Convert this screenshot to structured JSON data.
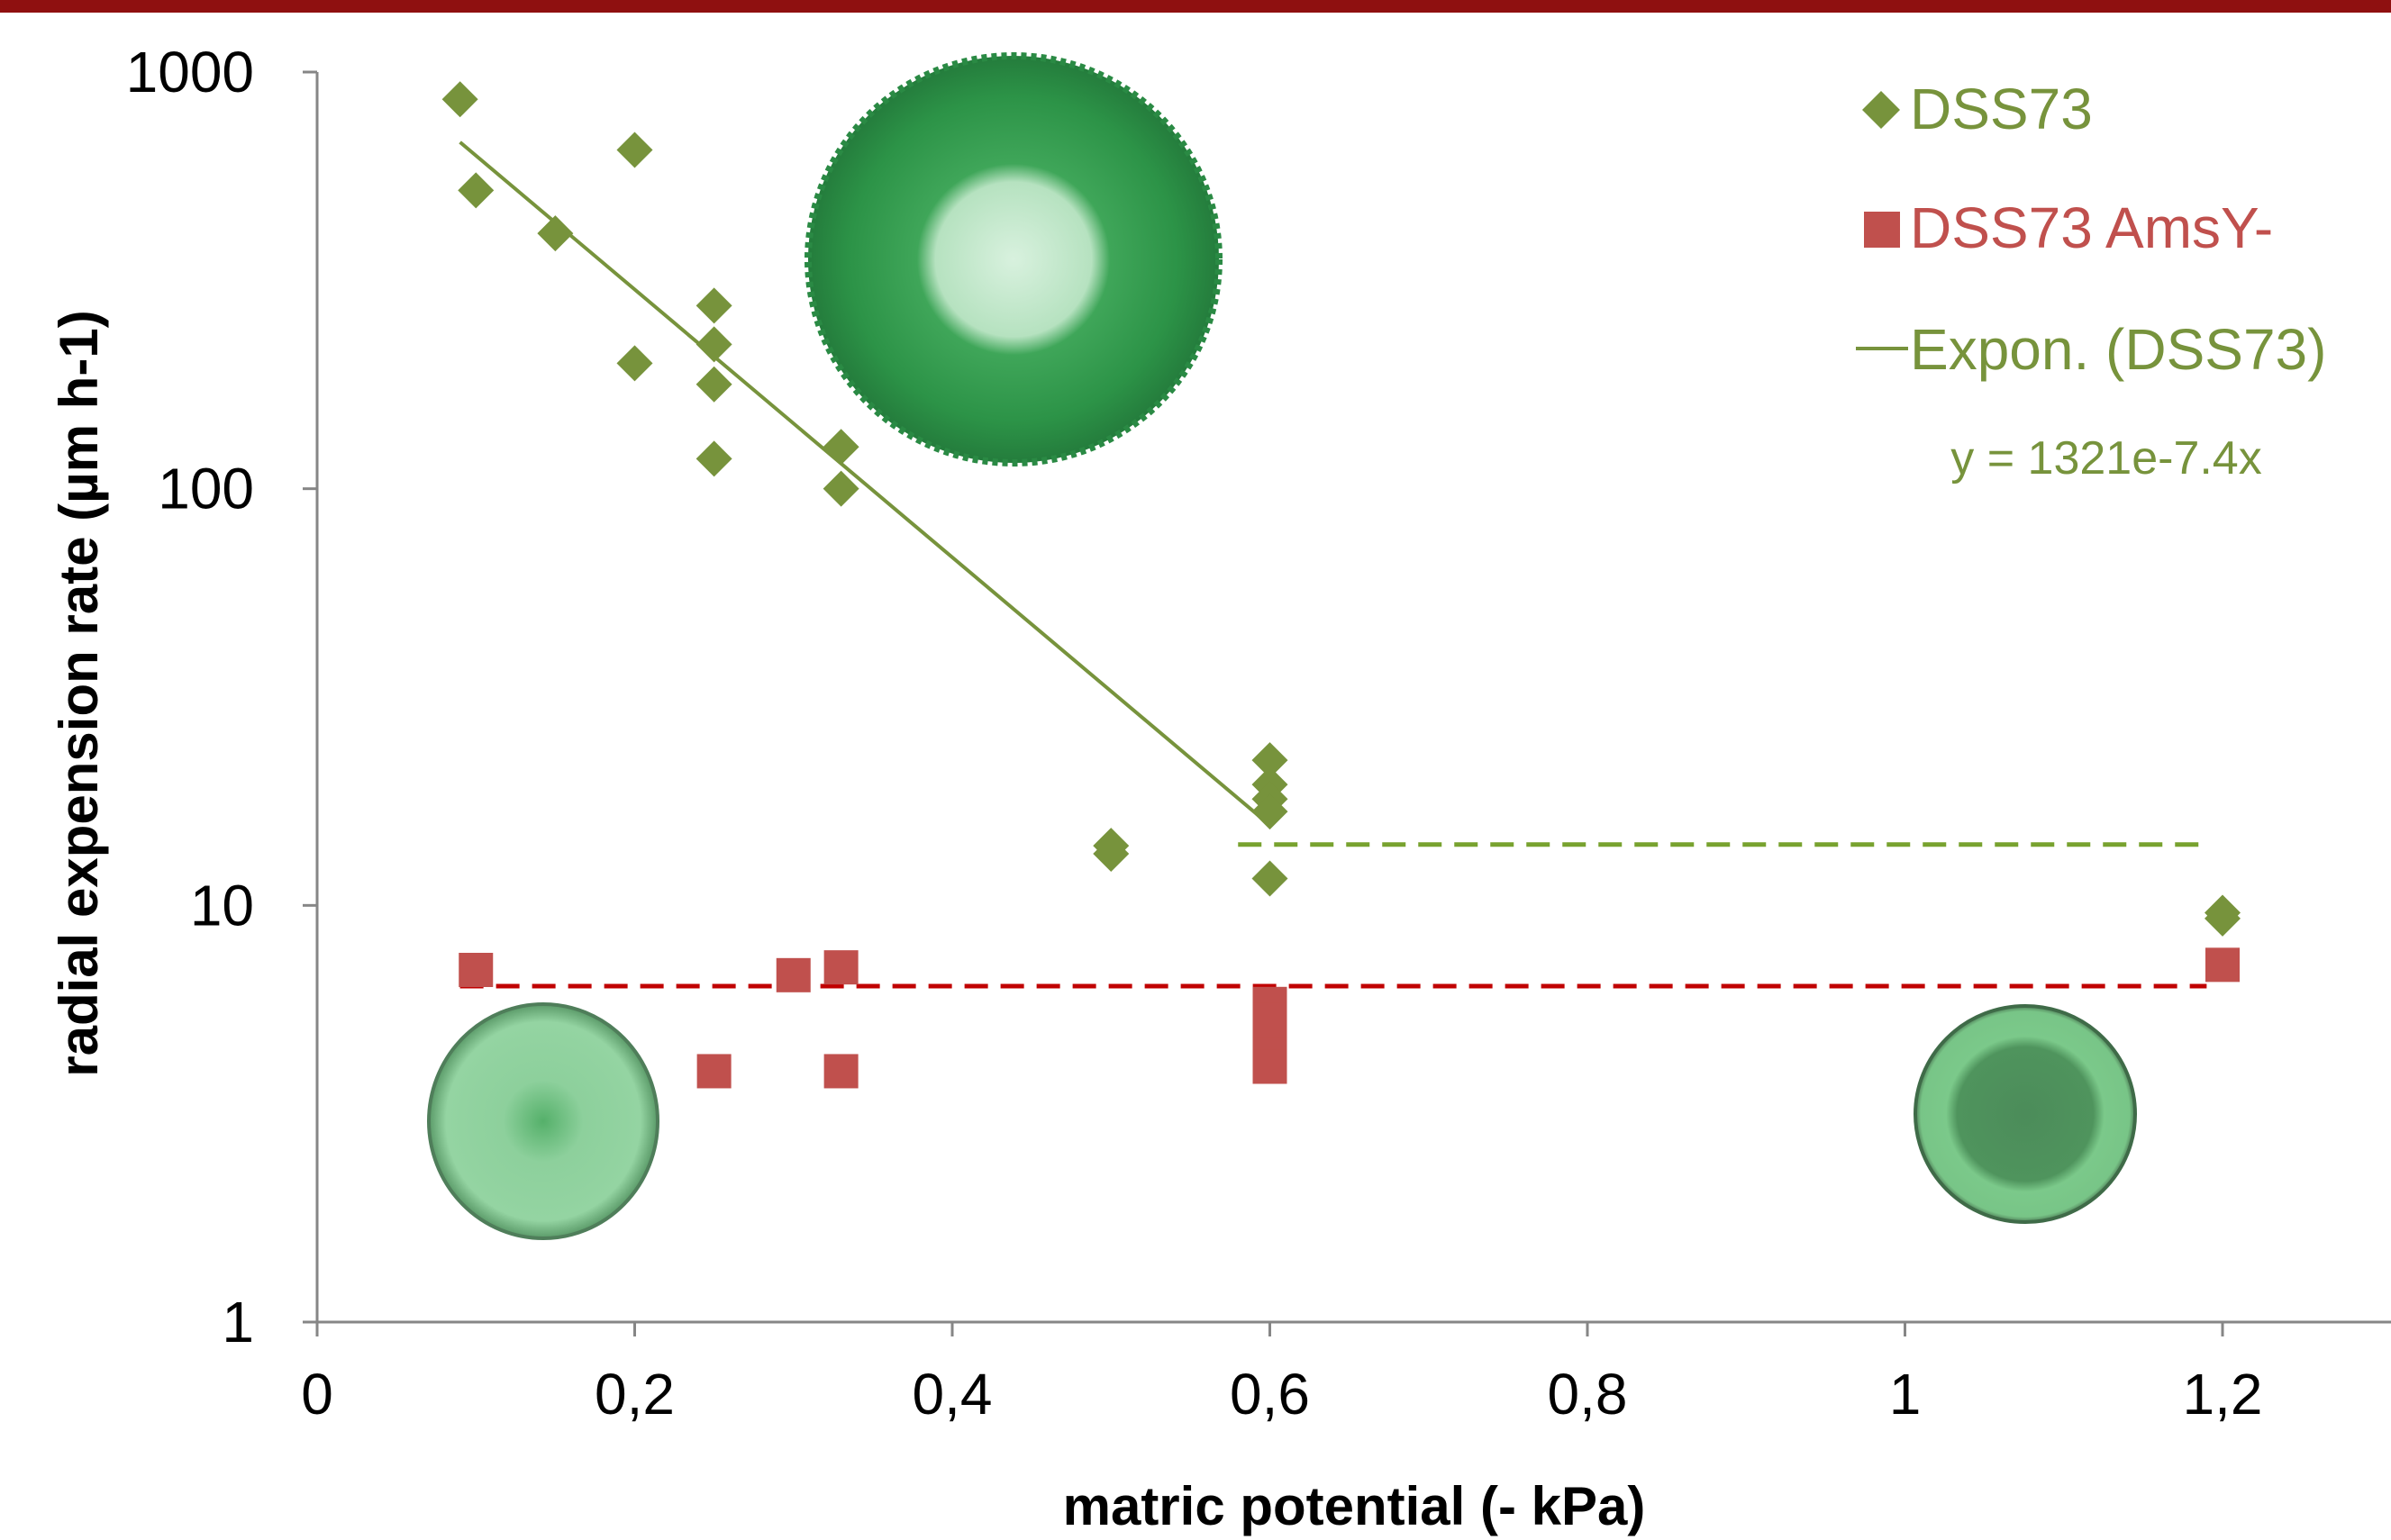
{
  "chart_data": {
    "type": "scatter",
    "title": "",
    "xlabel": "matric potential (- kPa)",
    "ylabel": "radial expension rate (µm h-1)",
    "xlim": [
      0,
      1.3
    ],
    "ylim": [
      1,
      1000
    ],
    "y_scale": "log",
    "grid": false,
    "legend_position": "top-right",
    "x_ticks": [
      0,
      0.2,
      0.4,
      0.6,
      0.8,
      1,
      1.2
    ],
    "x_tick_labels": [
      "0",
      "0,2",
      "0,4",
      "0,6",
      "0,8",
      "1",
      "1,2"
    ],
    "y_ticks": [
      1,
      10,
      100,
      1000
    ],
    "y_tick_labels": [
      "1",
      "10",
      "100",
      "1000"
    ],
    "series": [
      {
        "name": "DSS73",
        "marker": "diamond",
        "color": "#77933c",
        "points": [
          [
            0.09,
            860
          ],
          [
            0.1,
            520
          ],
          [
            0.15,
            410
          ],
          [
            0.2,
            650
          ],
          [
            0.2,
            200
          ],
          [
            0.25,
            275
          ],
          [
            0.25,
            222
          ],
          [
            0.25,
            178
          ],
          [
            0.25,
            118
          ],
          [
            0.33,
            126
          ],
          [
            0.33,
            100
          ],
          [
            0.5,
            13.9
          ],
          [
            0.5,
            13.3
          ],
          [
            0.6,
            22.3
          ],
          [
            0.6,
            19.5
          ],
          [
            0.6,
            18
          ],
          [
            0.6,
            16.8
          ],
          [
            0.6,
            11.6
          ],
          [
            1.2,
            9.6
          ],
          [
            1.2,
            9.3
          ]
        ]
      },
      {
        "name": "DSS73 AmsY-",
        "marker": "square",
        "color": "#c0504d",
        "points": [
          [
            0.1,
            7.0
          ],
          [
            0.25,
            4.0
          ],
          [
            0.3,
            6.8
          ],
          [
            0.33,
            7.1
          ],
          [
            0.33,
            4.0
          ],
          [
            0.6,
            5.8
          ],
          [
            0.6,
            5.3
          ],
          [
            0.6,
            4.8
          ],
          [
            0.6,
            4.4
          ],
          [
            0.6,
            4.1
          ],
          [
            1.2,
            7.2
          ]
        ]
      }
    ],
    "trendline": {
      "name": "Expon. (DSS73)",
      "equation": "y = 1321e-7.4x",
      "color": "#77933c",
      "a": 1321,
      "b": -7.4,
      "x_range": [
        0.09,
        0.6
      ]
    },
    "reference_lines": [
      {
        "style": "dashed",
        "color": "#78a22f",
        "y": 14,
        "x_range": [
          0.58,
          1.19
        ]
      },
      {
        "style": "dashed",
        "color": "#c00000",
        "y": 6.4,
        "x_range": [
          0.09,
          1.19
        ]
      }
    ],
    "legend": {
      "series_label_1": "DSS73",
      "series_label_2": "DSS73 AmsY-",
      "trend_label": "Expon. (DSS73)"
    }
  },
  "images": [
    {
      "name": "colony-image-large",
      "color": "#2e9a4a"
    },
    {
      "name": "colony-image-small-left",
      "color": "#5fbf73"
    },
    {
      "name": "colony-image-small-right",
      "color": "#52b066"
    }
  ],
  "colors": {
    "top_bar": "#8f1010",
    "axis": "#868686"
  }
}
